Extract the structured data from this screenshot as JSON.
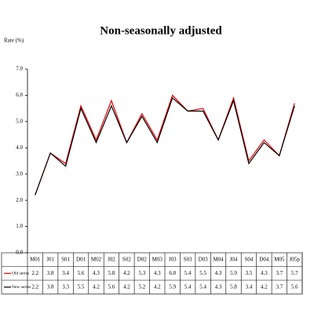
{
  "chart_data": {
    "type": "line",
    "title": "Non-seasonally adjusted",
    "y_label": "Rate (%)",
    "categories": [
      "M01",
      "J01",
      "S01",
      "D01",
      "M02",
      "J02",
      "S02",
      "D02",
      "M03",
      "J03",
      "S03",
      "D03",
      "M04",
      "J04",
      "S04",
      "D04",
      "M05",
      "J05p"
    ],
    "series": [
      {
        "name": "Old series",
        "color": "#e00000",
        "values": [
          2.2,
          3.8,
          3.4,
          5.6,
          4.3,
          5.8,
          4.2,
          5.3,
          4.3,
          6.0,
          5.4,
          5.5,
          4.3,
          5.9,
          3.5,
          4.3,
          3.7,
          5.7
        ],
        "value_labels": [
          "2.2",
          "3.8",
          "3.4",
          "5.6",
          "4.3",
          "5.8",
          "4.2",
          "5.3",
          "4.3",
          "6.0",
          "5.4",
          "5.5",
          "4.3",
          "5.9",
          "3.5",
          "4.3",
          "3.7",
          "5.7"
        ]
      },
      {
        "name": "New series",
        "color": "#000000",
        "values": [
          2.2,
          3.8,
          3.3,
          5.5,
          4.2,
          5.6,
          4.2,
          5.2,
          4.2,
          5.9,
          5.4,
          5.4,
          4.3,
          5.8,
          3.4,
          4.2,
          3.7,
          5.6
        ],
        "value_labels": [
          "2.2",
          "3.8",
          "3.3",
          "5.5",
          "4.2",
          "5.6",
          "4.2",
          "5.2",
          "4.2",
          "5.9",
          "5.4",
          "5.4",
          "4.3",
          "5.8",
          "3.4",
          "4.2",
          "3.7",
          "5.6"
        ]
      }
    ],
    "ylim": [
      0,
      7
    ],
    "yticks": [
      {
        "value": 0,
        "label": "0.0"
      },
      {
        "value": 1,
        "label": "1.0"
      },
      {
        "value": 2,
        "label": "2.0"
      },
      {
        "value": 3,
        "label": "3.0"
      },
      {
        "value": 4,
        "label": "4.0"
      },
      {
        "value": 5,
        "label": "5.0"
      },
      {
        "value": 6,
        "label": "6.0"
      },
      {
        "value": 7,
        "label": "7.0"
      }
    ],
    "grid": false
  }
}
